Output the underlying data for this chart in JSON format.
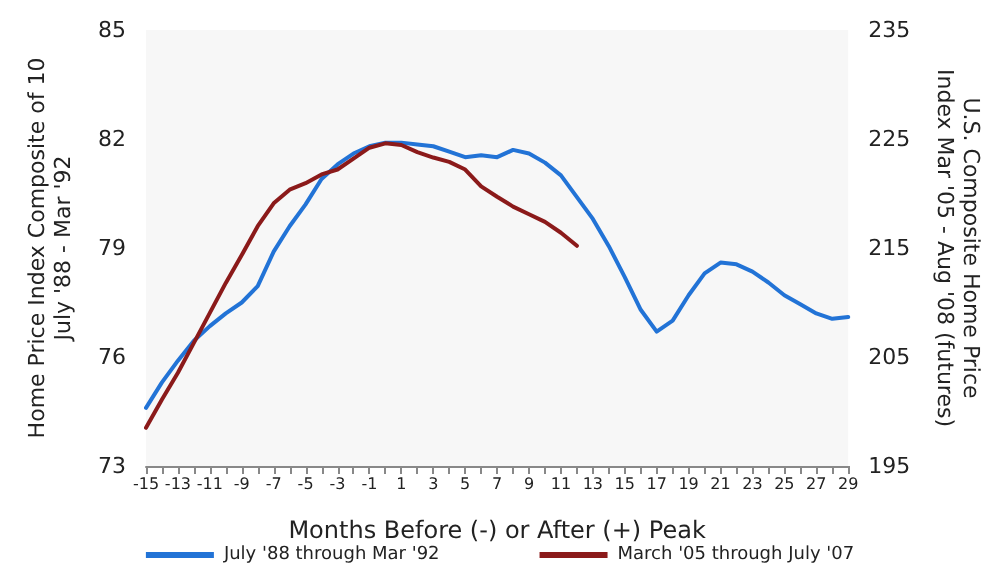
{
  "chart_data": {
    "type": "line",
    "xlabel": "Months Before (-) or After (+) Peak",
    "ylabel": "Home Price Index Composite of 10\nJuly '88 - Mar '92",
    "y2label": "U.S. Composite Home Price\nIndex Mar '05 - Aug '08 (futures)",
    "xlim": [
      -15,
      29
    ],
    "xticks": [
      -15,
      {
        "value": -14,
        "label": null
      },
      -13,
      {
        "value": -12,
        "label": null
      },
      -11,
      {
        "value": -10,
        "label": null
      },
      -9,
      {
        "value": -8,
        "label": null
      },
      -7,
      {
        "value": -6,
        "label": null
      },
      -5,
      {
        "value": -4,
        "label": null
      },
      -3,
      {
        "value": -2,
        "label": null
      },
      -1,
      {
        "value": 0,
        "label": null
      },
      1,
      {
        "value": 2,
        "label": null
      },
      3,
      {
        "value": 4,
        "label": null
      },
      5,
      {
        "value": 6,
        "label": null
      },
      7,
      {
        "value": 8,
        "label": null
      },
      9,
      {
        "value": 10,
        "label": null
      },
      11,
      {
        "value": 12,
        "label": null
      },
      13,
      {
        "value": 14,
        "label": null
      },
      15,
      {
        "value": 16,
        "label": null
      },
      17,
      {
        "value": 18,
        "label": null
      },
      19,
      {
        "value": 20,
        "label": null
      },
      21,
      {
        "value": 22,
        "label": null
      },
      23,
      {
        "value": 24,
        "label": null
      },
      25,
      {
        "value": 26,
        "label": null
      },
      27,
      {
        "value": 28,
        "label": null
      },
      29
    ],
    "ylim": [
      73,
      85
    ],
    "yticks": [
      73,
      76,
      79,
      82,
      85
    ],
    "y2lim": [
      195,
      235
    ],
    "y2ticks": [
      195,
      205,
      215,
      225,
      235
    ],
    "grid": false,
    "legend": "bottom",
    "marker": "none",
    "line_style": "solid",
    "series": [
      {
        "name": "July '88 through Mar '92",
        "color": "#2273d6",
        "x": [
          -15,
          -14,
          -13,
          -12,
          -11,
          -10,
          -9,
          -8,
          -7,
          -6,
          -5,
          -4,
          -3,
          -2,
          -1,
          0,
          1,
          2,
          3,
          4,
          5,
          6,
          7,
          8,
          9,
          10,
          11,
          12,
          13,
          14,
          15,
          16,
          17,
          18,
          19,
          20,
          21,
          22,
          23,
          24,
          25,
          26,
          27,
          28,
          29
        ],
        "values": [
          74.6,
          75.3,
          75.9,
          76.45,
          76.85,
          77.2,
          77.5,
          77.95,
          78.9,
          79.6,
          80.2,
          80.9,
          81.3,
          81.6,
          81.8,
          81.9,
          81.9,
          81.85,
          81.8,
          81.65,
          81.5,
          81.55,
          81.5,
          81.7,
          81.6,
          81.35,
          81.0,
          80.4,
          79.8,
          79.05,
          78.2,
          77.3,
          76.7,
          77.0,
          77.7,
          78.3,
          78.6,
          78.55,
          78.35,
          78.05,
          77.7,
          77.45,
          77.2,
          77.05,
          77.1
        ]
      },
      {
        "name": "March '05 through July '07",
        "color": "#8b1a1a",
        "axis": "y2",
        "x": [
          -15,
          -14,
          -13,
          -12,
          -11,
          -10,
          -9,
          -8,
          -7,
          -6,
          -5,
          -4,
          -3,
          -2,
          -1,
          0,
          1,
          2,
          3,
          4,
          5,
          6,
          7,
          8,
          9,
          10,
          11,
          12
        ],
        "values": [
          198.5,
          201.1,
          203.55,
          206.3,
          209.05,
          211.8,
          214.35,
          217.0,
          219.1,
          220.35,
          220.95,
          221.75,
          222.2,
          223.2,
          224.2,
          224.6,
          224.45,
          223.8,
          223.3,
          222.9,
          222.2,
          220.65,
          219.7,
          218.8,
          218.1,
          217.4,
          216.4,
          215.2
        ]
      }
    ]
  }
}
